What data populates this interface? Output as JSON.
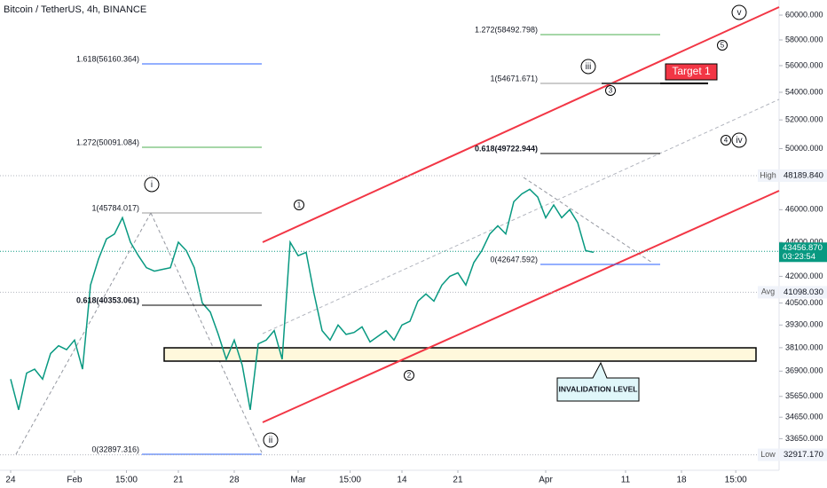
{
  "chart_data": {
    "type": "line",
    "title": "Bitcoin / TetherUS, 4h, BINANCE",
    "log_scale": true,
    "color": "#089981",
    "x": [
      0,
      1,
      2,
      3,
      4,
      5,
      6,
      7,
      8,
      9,
      10,
      11,
      12,
      13,
      14,
      15,
      16,
      17,
      18,
      19,
      20,
      21,
      22,
      23,
      24,
      25,
      26,
      27,
      28,
      29,
      30,
      31,
      32,
      33,
      34,
      35,
      36,
      37,
      38,
      39,
      40,
      41,
      42,
      43,
      44,
      45,
      46,
      47,
      48,
      49,
      50,
      51,
      52,
      53,
      54,
      55,
      56,
      57,
      58,
      59,
      60,
      61,
      62,
      63,
      64,
      65,
      66,
      67,
      68,
      69,
      70,
      71,
      72,
      73
    ],
    "values": [
      36500,
      35000,
      36800,
      37000,
      36500,
      37800,
      38200,
      38000,
      38500,
      37000,
      41500,
      43000,
      44200,
      44500,
      45500,
      44000,
      43200,
      42500,
      42300,
      42400,
      42500,
      44000,
      43500,
      42500,
      40500,
      40000,
      38800,
      37500,
      38500,
      37200,
      35000,
      38300,
      38500,
      39000,
      37500,
      44000,
      43200,
      43400,
      41000,
      39000,
      38500,
      39300,
      38800,
      38900,
      39200,
      38400,
      38700,
      39000,
      38500,
      39300,
      39500,
      40600,
      41000,
      40600,
      41500,
      42000,
      42200,
      41500,
      42800,
      43500,
      44500,
      45000,
      44500,
      46500,
      47000,
      47300,
      46800,
      45500,
      46300,
      45500,
      46000,
      45200,
      43500,
      43400
    ],
    "xlim": [
      -1.333,
      96.222
    ],
    "ylim": [
      32230,
      61250
    ],
    "xticks": [
      {
        "value": 0,
        "label": "24"
      },
      {
        "value": 8,
        "label": "Feb"
      },
      {
        "value": 14.5,
        "label": "15:00"
      },
      21,
      28,
      {
        "value": 36,
        "label": "Mar"
      },
      {
        "value": 42.5,
        "label": "15:00"
      },
      {
        "value": 49,
        "label": "14"
      },
      {
        "value": 56,
        "label": "21"
      },
      {
        "value": 67,
        "label": "Apr"
      },
      {
        "value": 77,
        "label": "11"
      },
      {
        "value": 84,
        "label": "18"
      },
      {
        "value": 90.8,
        "label": "15:00"
      }
    ],
    "yticks": [
      {
        "value": 60000,
        "label": "60000.000"
      },
      {
        "value": 58000,
        "label": "58000.000"
      },
      {
        "value": 56000,
        "label": "56000.000"
      },
      {
        "value": 54000,
        "label": "54000.000"
      },
      {
        "value": 52000,
        "label": "52000.000"
      },
      {
        "value": 50000,
        "label": "50000.000"
      },
      {
        "value": 46000,
        "label": "46000.000"
      },
      {
        "value": 44000,
        "label": "44000.000"
      },
      {
        "value": 42000,
        "label": "42000.000"
      },
      {
        "value": 40500,
        "label": "40500.000"
      },
      {
        "value": 39300,
        "label": "39300.000"
      },
      {
        "value": 38100,
        "label": "38100.000"
      },
      {
        "value": 36900,
        "label": "36900.000"
      },
      {
        "value": 35650,
        "label": "35650.000"
      },
      {
        "value": 34650,
        "label": "34650.000"
      },
      {
        "value": 33650,
        "label": "33650.000"
      }
    ],
    "price_markers": [
      {
        "name": "High",
        "price": {
          "value": 48189.84,
          "label": "48189.840"
        }
      },
      {
        "price": {
          "value": 43456.87,
          "label": "43456.870"
        },
        "countdown": "03:23:54"
      },
      {
        "name": "Avg",
        "price": {
          "value": 41098.03,
          "label": "41098.030"
        }
      },
      {
        "name": "Low",
        "price": {
          "value": 32917.17,
          "label": "32917.170"
        }
      }
    ],
    "fib_levels": [
      "1.618(56160.364)",
      "1.272(50091.084)",
      "1(45784.017)",
      "0.618(40353.061)",
      "0(32897.316)",
      "1.272(58492.798)",
      "1(54671.671)",
      "0.618(49722.944)",
      "0(42647.592)"
    ],
    "waves": [
      "i",
      "ii",
      "iii",
      "iv",
      "v",
      "1",
      "2",
      "3",
      "4",
      "5"
    ],
    "target": "Target 1",
    "invalidation": "INVALIDATION LEVEL"
  }
}
